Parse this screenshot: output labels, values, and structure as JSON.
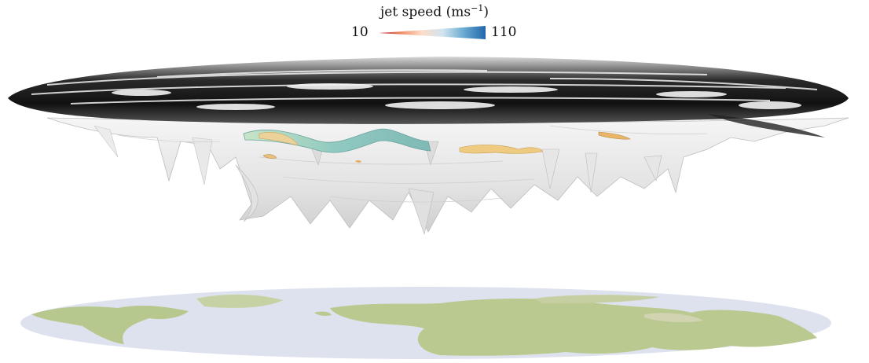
{
  "colorbar": {
    "label": "jet speed",
    "unit_base": "(ms",
    "unit_exp": "−1",
    "unit_close": ")",
    "min_label": "10",
    "max_label": "110",
    "gradient": [
      "#b2182b",
      "#ef8a62",
      "#fddbc7",
      "#d1e5f0",
      "#67a9cf",
      "#2166ac"
    ]
  },
  "colors": {
    "surface_gray": "#e6e6e6",
    "surface_dark": "#1a1a1a",
    "jet_teal": "#a6d6c6",
    "jet_yellow": "#e8c880",
    "ocean": "#dde2ee",
    "land": "#b9c98f"
  }
}
